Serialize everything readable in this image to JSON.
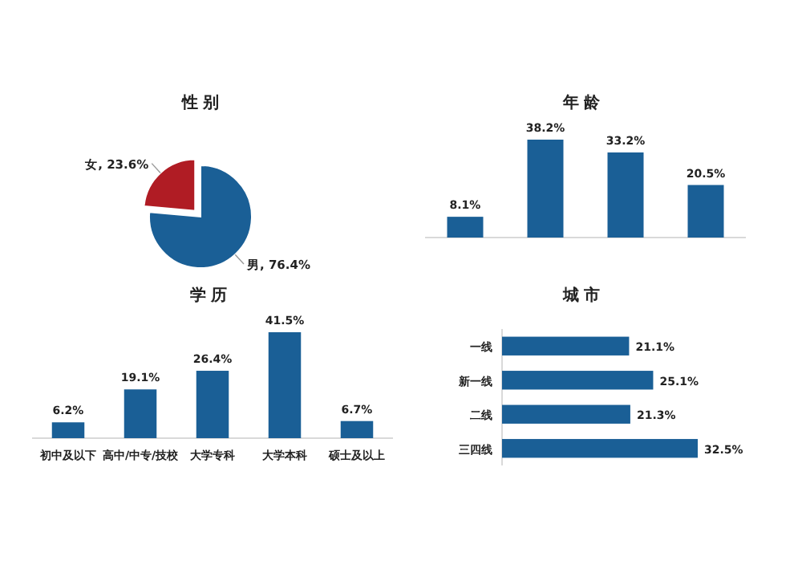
{
  "chart_data": [
    {
      "type": "pie",
      "title": "性 别",
      "categories": [
        "男",
        "女"
      ],
      "values": [
        76.4,
        23.6
      ],
      "colors": [
        "#1a5f96",
        "#b01c24"
      ],
      "value_labels": [
        "76.4%",
        "23.6%"
      ]
    },
    {
      "type": "bar",
      "title": "年 龄",
      "categories": [
        null,
        null,
        null,
        null
      ],
      "values": [
        8.1,
        38.2,
        33.2,
        20.5
      ],
      "color": "#1a5f96",
      "value_labels": [
        "8.1%",
        "38.2%",
        "33.2%",
        "20.5%"
      ]
    },
    {
      "type": "bar",
      "title": "学 历",
      "categories": [
        "初中及以下",
        "高中/中专/技校",
        "大学专科",
        "大学本科",
        "硕士及以上"
      ],
      "values": [
        6.2,
        19.1,
        26.4,
        41.5,
        6.7
      ],
      "color": "#1a5f96",
      "value_labels": [
        "6.2%",
        "19.1%",
        "26.4%",
        "41.5%",
        "6.7%"
      ]
    },
    {
      "type": "bar",
      "orientation": "horizontal",
      "title": "城 市",
      "categories": [
        "一线",
        "新一线",
        "二线",
        "三四线"
      ],
      "values": [
        21.1,
        25.1,
        21.3,
        32.5
      ],
      "color": "#1a5f96",
      "value_labels": [
        "21.1%",
        "25.1%",
        "21.3%",
        "32.5%"
      ]
    }
  ]
}
